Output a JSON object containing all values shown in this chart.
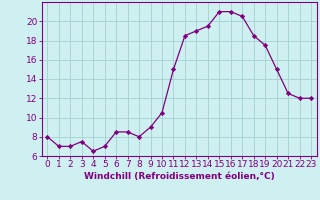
{
  "x": [
    0,
    1,
    2,
    3,
    4,
    5,
    6,
    7,
    8,
    9,
    10,
    11,
    12,
    13,
    14,
    15,
    16,
    17,
    18,
    19,
    20,
    21,
    22,
    23
  ],
  "y": [
    8,
    7,
    7,
    7.5,
    6.5,
    7,
    8.5,
    8.5,
    8,
    9,
    10.5,
    15,
    18.5,
    19,
    19.5,
    21,
    21,
    20.5,
    18.5,
    17.5,
    15,
    12.5,
    12,
    12
  ],
  "line_color": "#800080",
  "marker": "D",
  "marker_size": 2.2,
  "bg_color": "#cff0f0",
  "grid_color": "#aad4d4",
  "xlabel": "Windchill (Refroidissement éolien,°C)",
  "xlabel_fontsize": 6.5,
  "tick_fontsize": 6.5,
  "ylim": [
    6,
    22
  ],
  "yticks": [
    6,
    8,
    10,
    12,
    14,
    16,
    18,
    20
  ],
  "xlim": [
    -0.5,
    23.5
  ],
  "xticks": [
    0,
    1,
    2,
    3,
    4,
    5,
    6,
    7,
    8,
    9,
    10,
    11,
    12,
    13,
    14,
    15,
    16,
    17,
    18,
    19,
    20,
    21,
    22,
    23
  ]
}
